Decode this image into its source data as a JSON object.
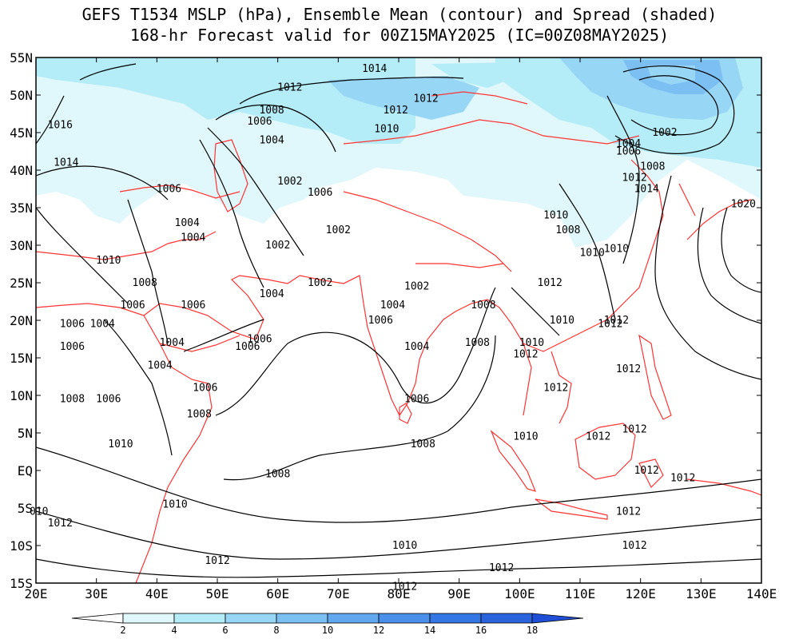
{
  "title": {
    "line1": "GEFS T1534 MSLP (hPa), Ensemble Mean (contour) and Spread (shaded)",
    "line2": "168-hr Forecast valid for 00Z15MAY2025 (IC=00Z08MAY2025)"
  },
  "axes": {
    "lon_labels": [
      "20E",
      "30E",
      "40E",
      "50E",
      "60E",
      "70E",
      "80E",
      "90E",
      "100E",
      "110E",
      "120E",
      "130E",
      "140E"
    ],
    "lat_labels": [
      "55N",
      "50N",
      "45N",
      "40N",
      "35N",
      "30N",
      "25N",
      "20N",
      "15N",
      "10N",
      "5N",
      "EQ",
      "5S",
      "10S",
      "15S"
    ],
    "lon_range": [
      20,
      140
    ],
    "lat_range": [
      -15,
      55
    ]
  },
  "colorbar": {
    "labels": [
      "2",
      "4",
      "6",
      "8",
      "10",
      "12",
      "14",
      "16",
      "18"
    ],
    "colors": [
      "#ffffff",
      "#e0f8fb",
      "#b4ecf7",
      "#98d6f5",
      "#7cbff2",
      "#62a8ee",
      "#4a8fea",
      "#3476e4",
      "#2a63dc",
      "#1f4fd6"
    ]
  },
  "colors": {
    "coast": "#ff3333",
    "contour": "#000000",
    "frame": "#000000"
  },
  "contour_labels": [
    {
      "text": "1014",
      "lon": 76,
      "lat": 53.5
    },
    {
      "text": "1012",
      "lon": 62,
      "lat": 51
    },
    {
      "text": "1012",
      "lon": 79.5,
      "lat": 48
    },
    {
      "text": "1012",
      "lon": 84.5,
      "lat": 49.5
    },
    {
      "text": "1010",
      "lon": 78,
      "lat": 45.5
    },
    {
      "text": "1008",
      "lon": 59,
      "lat": 48
    },
    {
      "text": "1006",
      "lon": 57,
      "lat": 46.5
    },
    {
      "text": "1004",
      "lon": 59,
      "lat": 44
    },
    {
      "text": "1002",
      "lon": 62,
      "lat": 38.5
    },
    {
      "text": "1006",
      "lon": 67,
      "lat": 37
    },
    {
      "text": "1002",
      "lon": 70,
      "lat": 32
    },
    {
      "text": "1002",
      "lon": 60,
      "lat": 30
    },
    {
      "text": "1002",
      "lon": 67,
      "lat": 25
    },
    {
      "text": "1004",
      "lon": 59,
      "lat": 23.5
    },
    {
      "text": "1004",
      "lon": 79,
      "lat": 22
    },
    {
      "text": "1002",
      "lon": 83,
      "lat": 24.5
    },
    {
      "text": "1006",
      "lon": 77,
      "lat": 20
    },
    {
      "text": "1008",
      "lon": 94,
      "lat": 22
    },
    {
      "text": "1008",
      "lon": 93,
      "lat": 17
    },
    {
      "text": "1004",
      "lon": 83,
      "lat": 16.5
    },
    {
      "text": "1006",
      "lon": 83,
      "lat": 9.5
    },
    {
      "text": "1008",
      "lon": 84,
      "lat": 3.5
    },
    {
      "text": "1008",
      "lon": 60,
      "lat": -0.5
    },
    {
      "text": "1010",
      "lon": 43,
      "lat": -4.5
    },
    {
      "text": "1010",
      "lon": 81,
      "lat": -10
    },
    {
      "text": "1012",
      "lon": 50,
      "lat": -12
    },
    {
      "text": "1012",
      "lon": 97,
      "lat": -13
    },
    {
      "text": "1012",
      "lon": 81,
      "lat": -15.5
    },
    {
      "text": "1016",
      "lon": 24,
      "lat": 46
    },
    {
      "text": "1014",
      "lon": 25,
      "lat": 41
    },
    {
      "text": "1006",
      "lon": 42,
      "lat": 37.5
    },
    {
      "text": "1004",
      "lon": 45,
      "lat": 33
    },
    {
      "text": "1004",
      "lon": 46,
      "lat": 31
    },
    {
      "text": "1010",
      "lon": 32,
      "lat": 28
    },
    {
      "text": "1008",
      "lon": 38,
      "lat": 25
    },
    {
      "text": "1006",
      "lon": 36,
      "lat": 22
    },
    {
      "text": "1006",
      "lon": 46,
      "lat": 22
    },
    {
      "text": "1006",
      "lon": 26,
      "lat": 19.5
    },
    {
      "text": "1004",
      "lon": 31,
      "lat": 19.5
    },
    {
      "text": "1006",
      "lon": 26,
      "lat": 16.5
    },
    {
      "text": "1004",
      "lon": 42.5,
      "lat": 17
    },
    {
      "text": "1004",
      "lon": 40.5,
      "lat": 14
    },
    {
      "text": "1006",
      "lon": 55,
      "lat": 16.5
    },
    {
      "text": "1006",
      "lon": 57,
      "lat": 17.5
    },
    {
      "text": "1006",
      "lon": 48,
      "lat": 11
    },
    {
      "text": "1008",
      "lon": 26,
      "lat": 9.5
    },
    {
      "text": "1006",
      "lon": 32,
      "lat": 9.5
    },
    {
      "text": "1008",
      "lon": 47,
      "lat": 7.5
    },
    {
      "text": "1010",
      "lon": 34,
      "lat": 3.5
    },
    {
      "text": "010",
      "lon": 20.5,
      "lat": -5.5
    },
    {
      "text": "1012",
      "lon": 24,
      "lat": -7
    },
    {
      "text": "1010",
      "lon": 106,
      "lat": 34
    },
    {
      "text": "1008",
      "lon": 108,
      "lat": 32
    },
    {
      "text": "1010",
      "lon": 112,
      "lat": 29
    },
    {
      "text": "1012",
      "lon": 105,
      "lat": 25
    },
    {
      "text": "1010",
      "lon": 107,
      "lat": 20
    },
    {
      "text": "1012",
      "lon": 115,
      "lat": 19.5
    },
    {
      "text": "1010",
      "lon": 102,
      "lat": 17
    },
    {
      "text": "1012",
      "lon": 101,
      "lat": 15.5
    },
    {
      "text": "1012",
      "lon": 106,
      "lat": 11
    },
    {
      "text": "1012",
      "lon": 118,
      "lat": 13.5
    },
    {
      "text": "1012",
      "lon": 119,
      "lat": 5.5
    },
    {
      "text": "1012",
      "lon": 113,
      "lat": 4.5
    },
    {
      "text": "1012",
      "lon": 121,
      "lat": 0
    },
    {
      "text": "1012",
      "lon": 127,
      "lat": -1
    },
    {
      "text": "1012",
      "lon": 118,
      "lat": -5.5
    },
    {
      "text": "1012",
      "lon": 119,
      "lat": -10
    },
    {
      "text": "1010",
      "lon": 101,
      "lat": 4.5
    },
    {
      "text": "1002",
      "lon": 124,
      "lat": 45
    },
    {
      "text": "1004",
      "lon": 118,
      "lat": 43.5
    },
    {
      "text": "1006",
      "lon": 118,
      "lat": 42.5
    },
    {
      "text": "1008",
      "lon": 122,
      "lat": 40.5
    },
    {
      "text": "1012",
      "lon": 119,
      "lat": 39
    },
    {
      "text": "1014",
      "lon": 121,
      "lat": 37.5
    },
    {
      "text": "1020",
      "lon": 137,
      "lat": 35.5
    },
    {
      "text": "1010",
      "lon": 116,
      "lat": 29.5
    },
    {
      "text": "1012",
      "lon": 116,
      "lat": 20
    }
  ]
}
